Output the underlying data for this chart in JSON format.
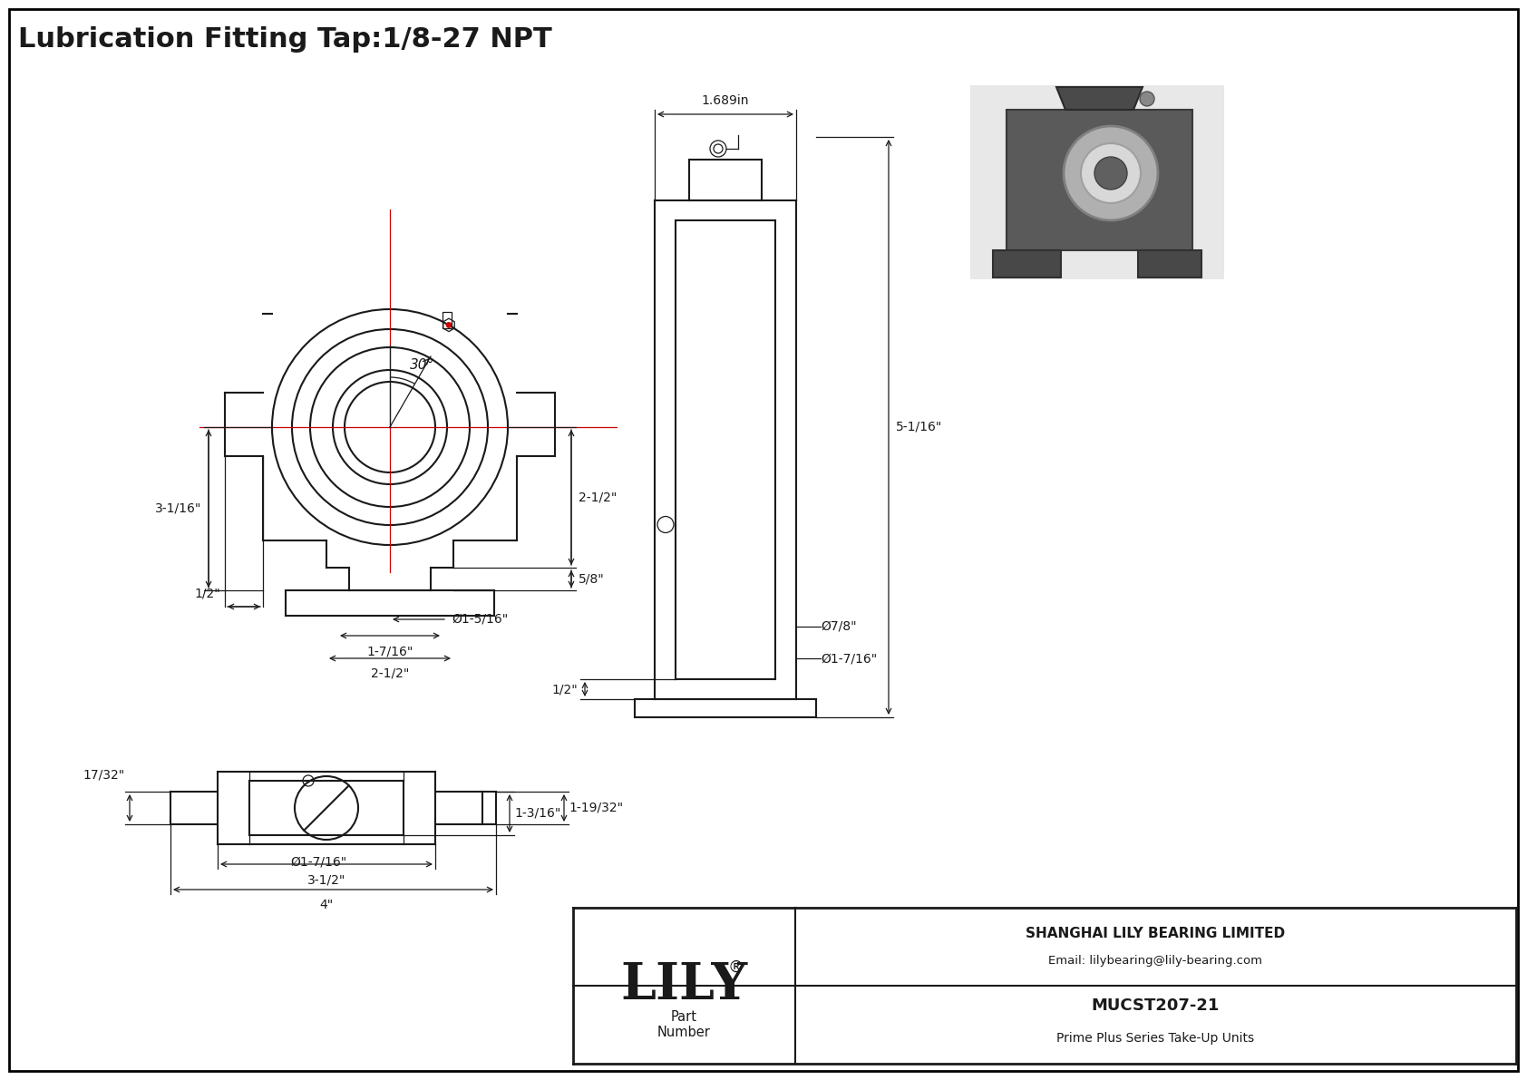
{
  "title": "Lubrication Fitting Tap:1/8-27 NPT",
  "bg_color": "#ffffff",
  "line_color": "#1a1a1a",
  "red_color": "#cc0000",
  "border_color": "#000000",
  "title_fontsize": 22,
  "dim_fontsize": 10,
  "lily_fontsize": 40,
  "company_name": "SHANGHAI LILY BEARING LIMITED",
  "company_email": "Email: lilybearing@lily-bearing.com",
  "part_label": "Part\nNumber",
  "part_number": "MUCST207-21",
  "part_series": "Prime Plus Series Take-Up Units",
  "dimensions": {
    "angle_30": "30°",
    "h_2_5": "2-1/2\"",
    "h_5_8": "5/8\"",
    "h_3_116": "3-1/16\"",
    "h_1_2_left": "1/2\"",
    "d_1_516": "Ø1-5/16\"",
    "w_1_716": "1-7/16\"",
    "w_2_5": "2-1/2\"",
    "h_17_32": "17/32\"",
    "d_1_716_bot": "Ø1-7/16\"",
    "w_3_5": "3-1/2\"",
    "w_4": "4\"",
    "h_1_319": "1-3/16\"",
    "h_1_1932": "1-19/32\"",
    "side_1689": "1.689in",
    "side_5_116": "5-1/16\"",
    "side_1_2": "1/2\"",
    "side_d_7_8": "Ø7/8\"",
    "side_d_1_716": "Ø1-7/16\""
  }
}
